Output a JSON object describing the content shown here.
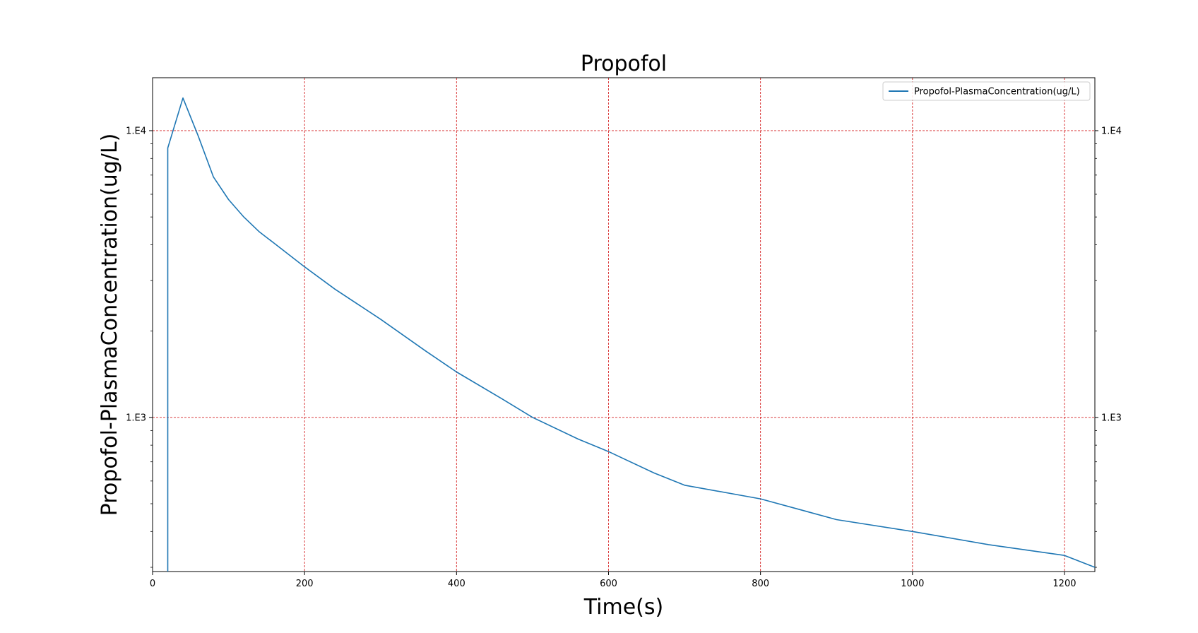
{
  "chart_data": {
    "type": "line",
    "title": "Propofol",
    "xlabel": "Time(s)",
    "ylabel": "Propofol-PlasmaConcentration(ug/L)",
    "xscale": "linear",
    "yscale": "log",
    "xlim": [
      0,
      1240
    ],
    "ylim": [
      290,
      15300
    ],
    "x_ticks": [
      0,
      200,
      400,
      600,
      800,
      1000,
      1200
    ],
    "x_tick_labels": [
      "0",
      "200",
      "400",
      "600",
      "800",
      "1000",
      "1200"
    ],
    "y_ticks": [
      1000,
      10000
    ],
    "y_tick_labels": [
      "1.E3",
      "1.E4"
    ],
    "y_ticks_right": true,
    "grid": {
      "on": true,
      "color": "#d62728",
      "style": "dashed",
      "axes": [
        "x-major",
        "y-major"
      ]
    },
    "legend": {
      "position": "upper right"
    },
    "series": [
      {
        "name": "Propofol-PlasmaConcentration(ug/L)",
        "color": "#1f77b4",
        "x": [
          20,
          20,
          40,
          60,
          80,
          100,
          120,
          140,
          160,
          200,
          240,
          300,
          360,
          400,
          460,
          500,
          560,
          600,
          660,
          700,
          800,
          900,
          1000,
          1100,
          1200,
          1240
        ],
        "y": [
          290,
          8700,
          13000,
          9600,
          6900,
          5750,
          5000,
          4450,
          4050,
          3350,
          2800,
          2200,
          1700,
          1440,
          1160,
          1000,
          840,
          760,
          640,
          580,
          520,
          440,
          400,
          360,
          330,
          300
        ]
      }
    ]
  }
}
